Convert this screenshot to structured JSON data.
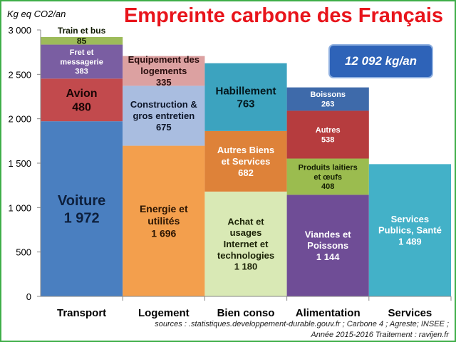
{
  "chart_data": {
    "type": "bar",
    "subtype": "stacked-mekko",
    "title": "Empreinte carbone des Français",
    "ylabel": "Kg eq CO2/an",
    "ylim": [
      0,
      3000
    ],
    "yticks": [
      "0",
      "500",
      "1 000",
      "1 500",
      "2 000",
      "2 500",
      "3 000"
    ],
    "grid": false,
    "total_label": "12 092 kg/an",
    "categories": [
      {
        "name": "Transport",
        "segments": [
          {
            "label": "Voiture",
            "value_label": "1 972",
            "value": 1972,
            "color": "#4a7fc0",
            "text_color": "#0d1f3c",
            "font_size": 20
          },
          {
            "label": "Avion",
            "value_label": "480",
            "value": 480,
            "color": "#c24a4d",
            "text_color": "#1a0505",
            "font_size": 16
          },
          {
            "label": "Fret et messagerie",
            "value_label": "383",
            "value": 383,
            "color": "#7a5ea2",
            "text_color": "#ffffff",
            "font_size": 11
          },
          {
            "label": "Train et bus",
            "value_label": "85",
            "value": 85,
            "color": "#9dbb5a",
            "text_color": "#101a02",
            "font_size": 12,
            "label_outside": true
          }
        ]
      },
      {
        "name": "Logement",
        "segments": [
          {
            "label": "Energie et utilités",
            "value_label": "1 696",
            "value": 1696,
            "color": "#f39f4d",
            "text_color": "#2a1402",
            "font_size": 14
          },
          {
            "label": "Construction & gros entretien",
            "value_label": "675",
            "value": 675,
            "color": "#a9bde0",
            "text_color": "#0c1528",
            "font_size": 13
          },
          {
            "label": "Equipement des logements",
            "value_label": "335",
            "value": 335,
            "color": "#dca1a1",
            "text_color": "#280d0d",
            "font_size": 13
          }
        ]
      },
      {
        "name": "Bien conso",
        "segments": [
          {
            "label": "Achat et usages Internet et technologies",
            "value_label": "1 180",
            "value": 1180,
            "color": "#d9e9b5",
            "text_color": "#1a2106",
            "font_size": 13
          },
          {
            "label": "Autres Biens et Services",
            "value_label": "682",
            "value": 682,
            "color": "#de8239",
            "text_color": "#ffffff",
            "font_size": 13
          },
          {
            "label": "Habillement",
            "value_label": "763",
            "value": 763,
            "color": "#3ca3bf",
            "text_color": "#04181e",
            "font_size": 15
          }
        ]
      },
      {
        "name": "Alimentation",
        "segments": [
          {
            "label": "Viandes et Poissons",
            "value_label": "1 144",
            "value": 1144,
            "color": "#6f4d96",
            "text_color": "#ffffff",
            "font_size": 13
          },
          {
            "label": "Produits laitiers et œufs",
            "value_label": "408",
            "value": 408,
            "color": "#9bbc4f",
            "text_color": "#141e03",
            "font_size": 11
          },
          {
            "label": "Autres",
            "value_label": "538",
            "value": 538,
            "color": "#b63c3e",
            "text_color": "#ffffff",
            "font_size": 11
          },
          {
            "label": "Boissons",
            "value_label": "263",
            "value": 263,
            "color": "#3e6aaa",
            "text_color": "#ffffff",
            "font_size": 11
          }
        ]
      },
      {
        "name": "Services",
        "segments": [
          {
            "label": "Services Publics, Santé",
            "value_label": "1 489",
            "value": 1489,
            "color": "#43b1c8",
            "text_color": "#ffffff",
            "font_size": 13
          }
        ]
      }
    ]
  },
  "sources_line1": "sources : .statistiques.developpement-durable.gouv.fr ; Carbone 4 ; Agreste;  INSEE ;",
  "sources_line2": "Année 2015-2016     Traitement : ravijen.fr"
}
